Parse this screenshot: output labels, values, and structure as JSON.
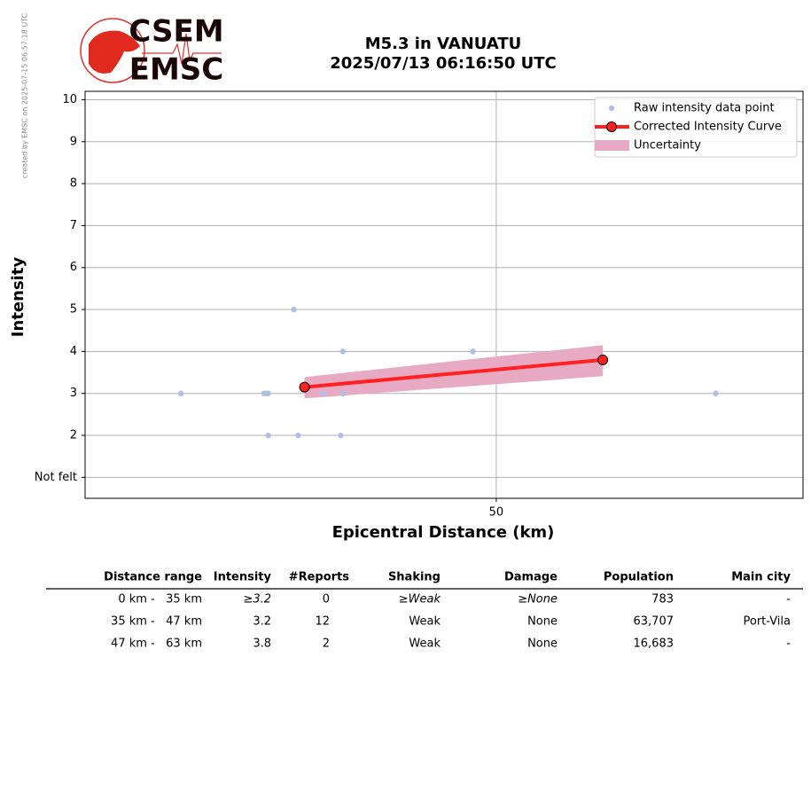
{
  "chart_data": {
    "type": "scatter",
    "title": "M5.3 in VANUATU",
    "subtitle": "2025/07/13 06:16:50 UTC",
    "credit": "created by EMSC on 2025-07-15 06:57:18 UTC",
    "logo": {
      "top": "CSEM",
      "bottom": "EMSC"
    },
    "xlabel": "Epicentral Distance (km)",
    "ylabel": "Intensity",
    "xlim": [
      30.7,
      64.4
    ],
    "ylim": [
      0.5,
      10.2
    ],
    "xticks": [
      50
    ],
    "yticks": [
      {
        "value": 1,
        "label": "Not felt"
      },
      2,
      3,
      4,
      5,
      6,
      7,
      8,
      9,
      10
    ],
    "grid": true,
    "legend": "upper right",
    "series": [
      {
        "name": "Raw intensity data point",
        "color": "#aec0e8",
        "kind": "points",
        "x": [
          35.2,
          39.1,
          39.2,
          39.3,
          39.3,
          40.5,
          40.7,
          41.9,
          42.7,
          42.8,
          42.8,
          42.8,
          48.9,
          60.3
        ],
        "values": [
          3,
          3,
          3,
          3,
          2,
          5,
          2,
          3,
          2,
          4,
          3,
          3,
          4,
          3
        ]
      },
      {
        "name": "Corrected Intensity Curve",
        "color": "#ff2020",
        "kind": "line",
        "x": [
          41,
          55
        ],
        "values": [
          3.15,
          3.8
        ]
      },
      {
        "name": "Uncertainty",
        "color": "#e8a9c3",
        "kind": "band",
        "x": [
          41,
          55
        ],
        "lower": [
          2.88,
          3.41
        ],
        "upper": [
          3.39,
          4.15
        ]
      }
    ]
  },
  "table": {
    "headers": [
      "Distance range",
      "Intensity",
      "#Reports",
      "Shaking",
      "Damage",
      "Population",
      "Main city"
    ],
    "rows": [
      [
        "0 km -   35 km",
        "≥3.2",
        "0",
        "≥Weak",
        "≥None",
        "783",
        "-"
      ],
      [
        "35 km -   47 km",
        "3.2",
        "12",
        "Weak",
        "None",
        "63,707",
        "Port-Vila"
      ],
      [
        "47 km -   63 km",
        "3.8",
        "2",
        "Weak",
        "None",
        "16,683",
        "-"
      ]
    ]
  }
}
